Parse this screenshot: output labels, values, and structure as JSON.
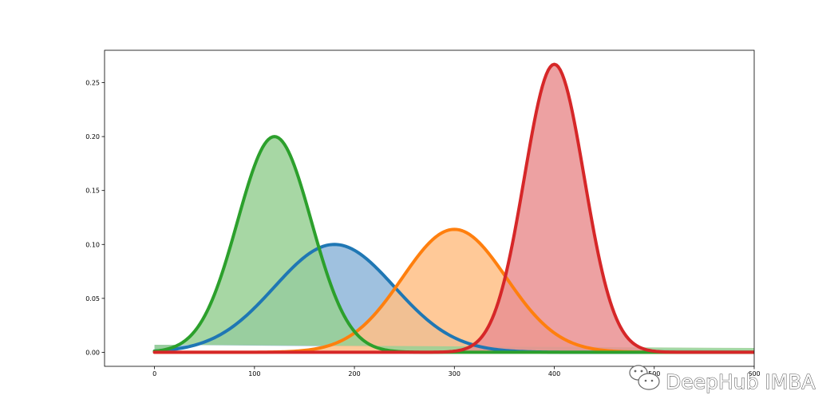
{
  "watermark": {
    "text": "DeepHub IMBA",
    "icon": "wechat-icon"
  },
  "chart_data": {
    "type": "area",
    "title": "",
    "xlabel": "",
    "ylabel": "",
    "xlim": [
      -50,
      600
    ],
    "ylim": [
      -0.013,
      0.28
    ],
    "grid": false,
    "x_ticks": [
      0,
      100,
      200,
      300,
      400,
      500,
      600
    ],
    "x_tick_labels": [
      "0",
      "100",
      "200",
      "300",
      "400",
      "500",
      "600"
    ],
    "y_ticks": [
      0.0,
      0.05,
      0.1,
      0.15,
      0.2,
      0.25
    ],
    "y_tick_labels": [
      "0.00",
      "0.05",
      "0.10",
      "0.15",
      "0.20",
      "0.25"
    ],
    "curve_shape": "gaussian",
    "x_range": [
      0,
      600
    ],
    "series": [
      {
        "color": "#1f77b4",
        "fill": "#8eb6d9",
        "mean": 180,
        "std": 60,
        "peak": 0.1,
        "fill_base": [
          0.007,
          0.002
        ]
      },
      {
        "color": "#ff7f0e",
        "fill": "#ffbf86",
        "mean": 300,
        "std": 52,
        "peak": 0.114,
        "fill_base": [
          0.0,
          0.0
        ]
      },
      {
        "color": "#2ca02c",
        "fill": "#98d094",
        "mean": 120,
        "std": 37,
        "peak": 0.2,
        "fill_base": [
          0.007,
          0.004
        ]
      },
      {
        "color": "#d62728",
        "fill": "#ea9192",
        "mean": 400,
        "std": 30,
        "peak": 0.267,
        "fill_base": [
          0.0,
          0.0
        ]
      }
    ]
  }
}
